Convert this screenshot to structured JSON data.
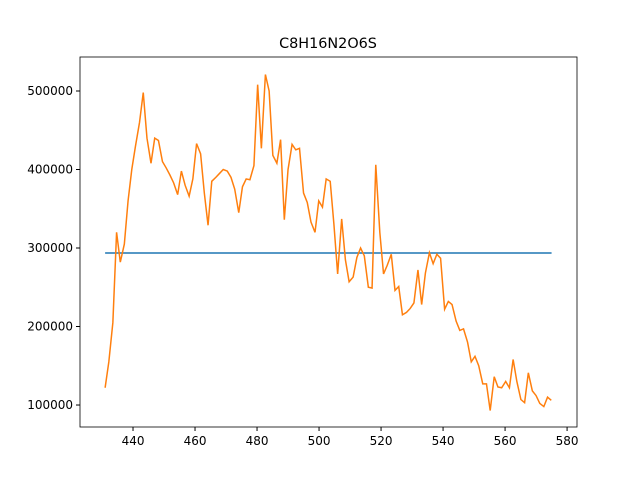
{
  "chart_data": {
    "type": "line",
    "title": "C8H16N2O6S",
    "xlim": [
      422.9,
      583.2
    ],
    "ylim": [
      72000,
      543300
    ],
    "xticks": [
      440,
      460,
      480,
      500,
      520,
      540,
      560,
      580
    ],
    "yticks": [
      100000,
      200000,
      300000,
      400000,
      500000
    ],
    "series": [
      {
        "color": "#1f77b4",
        "x": [
          431,
          575
        ],
        "values": [
          293600,
          293600
        ]
      },
      {
        "color": "#ff7f0e",
        "x": [
          431.0,
          432.2,
          433.5,
          434.7,
          435.9,
          437.2,
          438.4,
          439.6,
          440.8,
          442.1,
          443.3,
          444.5,
          445.8,
          447.0,
          448.2,
          449.5,
          450.7,
          451.9,
          453.1,
          454.4,
          455.6,
          456.8,
          458.1,
          459.3,
          460.5,
          461.8,
          463.0,
          464.2,
          465.4,
          466.7,
          467.9,
          469.1,
          470.4,
          471.6,
          472.8,
          474.1,
          475.3,
          476.5,
          477.7,
          479.0,
          480.2,
          481.4,
          482.7,
          483.9,
          485.1,
          486.4,
          487.6,
          488.8,
          490.0,
          491.3,
          492.5,
          493.7,
          495.0,
          496.2,
          497.4,
          498.7,
          499.9,
          501.1,
          502.3,
          503.6,
          504.8,
          506.0,
          507.3,
          508.5,
          509.7,
          511.0,
          512.2,
          513.4,
          514.6,
          515.9,
          517.1,
          518.3,
          519.6,
          520.8,
          522.0,
          523.3,
          524.5,
          525.7,
          526.9,
          528.2,
          529.4,
          530.6,
          531.9,
          533.1,
          534.3,
          535.6,
          536.8,
          538.0,
          539.2,
          540.5,
          541.7,
          542.9,
          544.2,
          545.4,
          546.6,
          547.9,
          549.1,
          550.3,
          551.5,
          552.8,
          554.0,
          555.2,
          556.5,
          557.7,
          558.9,
          560.2,
          561.4,
          562.6,
          563.8,
          565.1,
          566.3,
          567.5,
          568.8,
          570.0,
          571.2,
          572.5,
          573.7,
          574.9
        ],
        "values": [
          122000,
          155000,
          205000,
          320000,
          282000,
          305000,
          360000,
          400000,
          430000,
          460000,
          498000,
          440000,
          408000,
          440000,
          437000,
          410000,
          402000,
          393000,
          383000,
          368000,
          398000,
          380000,
          366000,
          388000,
          433000,
          420000,
          370000,
          329000,
          385000,
          390000,
          395000,
          400000,
          398000,
          390000,
          375000,
          345000,
          378000,
          388000,
          387000,
          405000,
          508000,
          427000,
          521000,
          500000,
          418000,
          408000,
          438000,
          336000,
          400000,
          432000,
          425000,
          427000,
          370000,
          358000,
          333000,
          320000,
          360000,
          352000,
          388000,
          385000,
          330000,
          267000,
          337000,
          285000,
          257000,
          263000,
          288000,
          300000,
          290000,
          250000,
          249000,
          406000,
          320000,
          267000,
          278000,
          292000,
          246000,
          251000,
          215000,
          218000,
          223000,
          230000,
          272000,
          228000,
          268000,
          294000,
          280000,
          292000,
          287000,
          222000,
          232000,
          228000,
          207000,
          195000,
          197000,
          180000,
          155000,
          162000,
          150000,
          127000,
          127000,
          93000,
          136000,
          123000,
          122000,
          130000,
          122000,
          158000,
          130000,
          107000,
          103000,
          141000,
          118000,
          112000,
          102000,
          98000,
          110000,
          106000
        ]
      }
    ]
  }
}
